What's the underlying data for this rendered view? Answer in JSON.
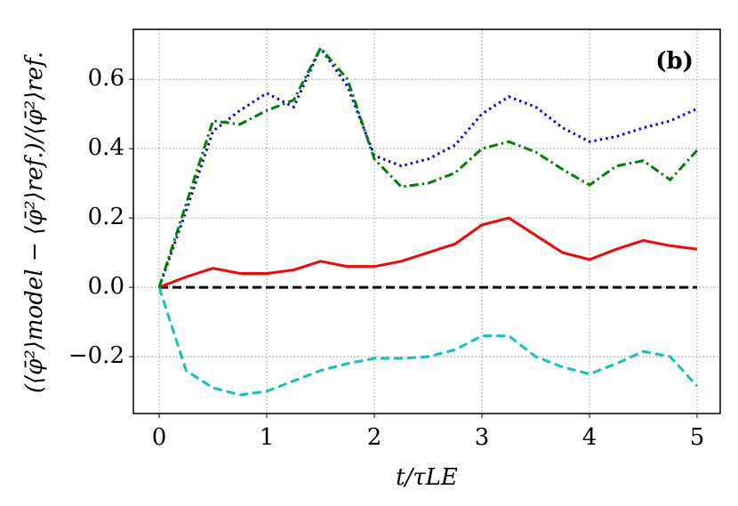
{
  "chart_data": {
    "type": "line",
    "annotation": "(b)",
    "x_label": "t/τLE",
    "y_label": "(⟨φ̄²⟩model − ⟨φ̄²⟩ref.)/⟨φ̄²⟩ref.",
    "x": [
      0,
      0.25,
      0.5,
      0.75,
      1.0,
      1.25,
      1.5,
      1.75,
      2.0,
      2.25,
      2.5,
      2.75,
      3.0,
      3.25,
      3.5,
      3.75,
      4.0,
      4.25,
      4.5,
      4.75,
      5.0
    ],
    "series": [
      {
        "color": "#000000",
        "style": "dashed",
        "values": [
          0,
          0,
          0,
          0,
          0,
          0,
          0,
          0,
          0,
          0,
          0,
          0,
          0,
          0,
          0,
          0,
          0,
          0,
          0,
          0,
          0
        ]
      },
      {
        "color": "#ff0000",
        "style": "solid",
        "values": [
          0,
          0.03,
          0.055,
          0.04,
          0.04,
          0.05,
          0.075,
          0.06,
          0.06,
          0.075,
          0.1,
          0.125,
          0.18,
          0.2,
          0.15,
          0.1,
          0.08,
          0.11,
          0.135,
          0.12,
          0.11
        ]
      },
      {
        "color": "#17bfbf",
        "style": "dashed",
        "values": [
          0,
          -0.24,
          -0.29,
          -0.31,
          -0.3,
          -0.27,
          -0.24,
          -0.22,
          -0.205,
          -0.205,
          -0.2,
          -0.18,
          -0.14,
          -0.14,
          -0.2,
          -0.23,
          -0.25,
          -0.22,
          -0.185,
          -0.2,
          -0.285
        ]
      },
      {
        "color": "#0000ff",
        "style": "dotted",
        "values": [
          0,
          0.22,
          0.45,
          0.51,
          0.56,
          0.52,
          0.69,
          0.58,
          0.38,
          0.35,
          0.37,
          0.41,
          0.5,
          0.55,
          0.52,
          0.46,
          0.42,
          0.435,
          0.46,
          0.48,
          0.515
        ]
      },
      {
        "color": "#008000",
        "style": "dashdot",
        "values": [
          0,
          0.24,
          0.48,
          0.47,
          0.51,
          0.54,
          0.69,
          0.6,
          0.37,
          0.29,
          0.3,
          0.33,
          0.4,
          0.42,
          0.39,
          0.34,
          0.295,
          0.35,
          0.365,
          0.31,
          0.395
        ]
      }
    ],
    "xlim": [
      -0.24,
      5.215
    ],
    "ylim": [
      -0.364,
      0.744
    ],
    "xticks": [
      0,
      1,
      2,
      3,
      4,
      5
    ],
    "yticks": [
      {
        "value": -0.2,
        "label": "−0.2"
      },
      {
        "value": 0,
        "label": "0.0"
      },
      0.2,
      0.4,
      0.6
    ],
    "grid": true
  }
}
